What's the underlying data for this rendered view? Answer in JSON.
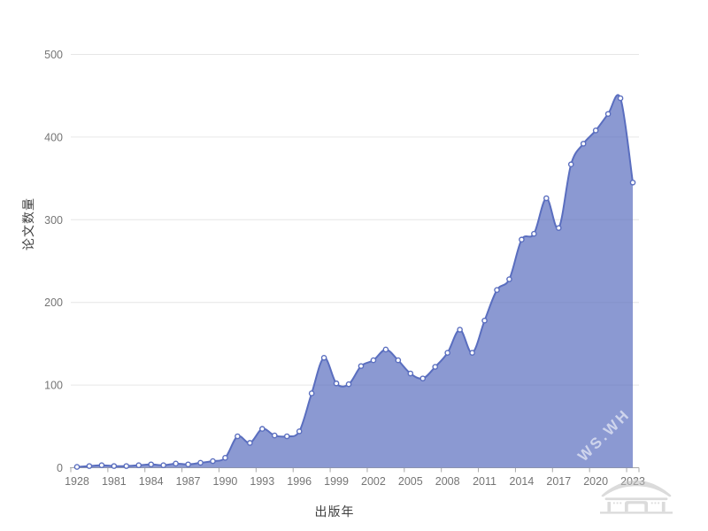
{
  "watermark": {
    "text": "WS.WH"
  },
  "icons": {
    "bottom_right_logo": "chinese-pavilion-icon"
  },
  "chart_data": {
    "type": "area",
    "xlabel": "出版年",
    "ylabel": "论文数量",
    "categories": [
      "1928",
      "1979",
      "1980",
      "1981",
      "1982",
      "1983",
      "1984",
      "1985",
      "1986",
      "1987",
      "1988",
      "1989",
      "1990",
      "1991",
      "1992",
      "1993",
      "1994",
      "1995",
      "1996",
      "1997",
      "1998",
      "1999",
      "2000",
      "2001",
      "2002",
      "2003",
      "2004",
      "2005",
      "2006",
      "2007",
      "2008",
      "2009",
      "2010",
      "2011",
      "2012",
      "2013",
      "2014",
      "2015",
      "2016",
      "2017",
      "2018",
      "2019",
      "2020",
      "2021",
      "2022",
      "2023"
    ],
    "values": [
      1,
      2,
      3,
      2,
      2,
      3,
      4,
      3,
      5,
      4,
      6,
      8,
      12,
      38,
      30,
      47,
      39,
      38,
      44,
      90,
      133,
      102,
      101,
      123,
      130,
      143,
      130,
      114,
      108,
      122,
      139,
      167,
      139,
      178,
      215,
      228,
      276,
      283,
      326,
      290,
      367,
      392,
      408,
      428,
      447,
      345
    ],
    "x_tick_labels": [
      "1928",
      "1981",
      "1984",
      "1987",
      "1990",
      "1993",
      "1996",
      "1999",
      "2002",
      "2005",
      "2008",
      "2011",
      "2014",
      "2017",
      "2020",
      "2023"
    ],
    "x_tick_interval": 3,
    "y_ticks": [
      0,
      100,
      200,
      300,
      400,
      500
    ],
    "ylim": [
      0,
      500
    ],
    "grid": "horizontal",
    "legend": "none",
    "smooth": true,
    "marker": "circle",
    "colors": {
      "line": "#5a6ebf",
      "fill": "#5a6ebf",
      "fill_opacity": 0.7,
      "marker_fill": "#ffffff",
      "gridline": "#e6e6e6",
      "axis": "#a8a8a8",
      "tick_text": "#757575"
    }
  }
}
